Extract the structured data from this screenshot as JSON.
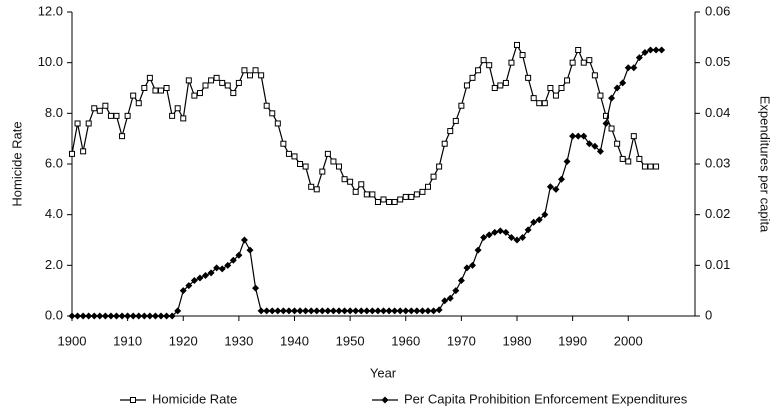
{
  "chart_data": {
    "type": "line",
    "xlabel": "Year",
    "ylabel": "Homicide Rate",
    "y2label": "Expenditures per capita",
    "x": [
      1900,
      1901,
      1902,
      1903,
      1904,
      1905,
      1906,
      1907,
      1908,
      1909,
      1910,
      1911,
      1912,
      1913,
      1914,
      1915,
      1916,
      1917,
      1918,
      1919,
      1920,
      1921,
      1922,
      1923,
      1924,
      1925,
      1926,
      1927,
      1928,
      1929,
      1930,
      1931,
      1932,
      1933,
      1934,
      1935,
      1936,
      1937,
      1938,
      1939,
      1940,
      1941,
      1942,
      1943,
      1944,
      1945,
      1946,
      1947,
      1948,
      1949,
      1950,
      1951,
      1952,
      1953,
      1954,
      1955,
      1956,
      1957,
      1958,
      1959,
      1960,
      1961,
      1962,
      1963,
      1964,
      1965,
      1966,
      1967,
      1968,
      1969,
      1970,
      1971,
      1972,
      1973,
      1974,
      1975,
      1976,
      1977,
      1978,
      1979,
      1980,
      1981,
      1982,
      1983,
      1984,
      1985,
      1986,
      1987,
      1988,
      1989,
      1990,
      1991,
      1992,
      1993,
      1994,
      1995,
      1996,
      1997,
      1998,
      1999,
      2000,
      2001,
      2002,
      2003,
      2004,
      2005,
      2006
    ],
    "series": [
      {
        "name": "Homicide Rate",
        "color": "#000000",
        "marker": "square",
        "values": [
          6.4,
          7.6,
          6.5,
          7.6,
          8.2,
          8.1,
          8.3,
          7.9,
          7.9,
          7.1,
          7.9,
          8.7,
          8.4,
          9.0,
          9.4,
          8.9,
          8.9,
          9.0,
          7.9,
          8.2,
          7.8,
          9.3,
          8.7,
          8.8,
          9.1,
          9.3,
          9.4,
          9.2,
          9.1,
          8.8,
          9.2,
          9.7,
          9.5,
          9.7,
          9.5,
          8.3,
          8.0,
          7.6,
          6.8,
          6.4,
          6.3,
          6.0,
          5.9,
          5.1,
          5.0,
          5.7,
          6.4,
          6.1,
          5.9,
          5.4,
          5.3,
          4.9,
          5.2,
          4.8,
          4.8,
          4.5,
          4.6,
          4.5,
          4.5,
          4.6,
          4.7,
          4.7,
          4.8,
          4.9,
          5.1,
          5.5,
          5.9,
          6.8,
          7.3,
          7.7,
          8.3,
          9.1,
          9.4,
          9.7,
          10.1,
          9.9,
          9.0,
          9.1,
          9.2,
          10.0,
          10.7,
          10.3,
          9.4,
          8.6,
          8.4,
          8.4,
          9.0,
          8.7,
          9.0,
          9.3,
          10.0,
          10.5,
          10.0,
          10.1,
          9.5,
          8.7,
          7.9,
          7.4,
          6.8,
          6.2,
          6.1,
          7.1,
          6.2,
          5.9,
          5.9,
          5.9,
          null
        ]
      },
      {
        "name": "Per Capita Prohibition Enforcement Expenditures",
        "color": "#000000",
        "marker": "diamond",
        "axis": "y2",
        "values": [
          0,
          0,
          0,
          0,
          0,
          0,
          0,
          0,
          0,
          0,
          0,
          0,
          0,
          0,
          0,
          0,
          0,
          0,
          0,
          0.001,
          0.005,
          0.006,
          0.007,
          0.0075,
          0.008,
          0.0085,
          0.0095,
          0.0093,
          0.01,
          0.011,
          0.012,
          0.015,
          0.013,
          0.0055,
          0.001,
          0.001,
          0.001,
          0.001,
          0.001,
          0.001,
          0.001,
          0.001,
          0.001,
          0.001,
          0.001,
          0.001,
          0.001,
          0.001,
          0.001,
          0.001,
          0.001,
          0.001,
          0.001,
          0.001,
          0.001,
          0.001,
          0.001,
          0.001,
          0.001,
          0.001,
          0.001,
          0.001,
          0.001,
          0.001,
          0.001,
          0.001,
          0.0012,
          0.003,
          0.0035,
          0.005,
          0.007,
          0.0095,
          0.01,
          0.013,
          0.0155,
          0.016,
          0.0165,
          0.0168,
          0.0165,
          0.0155,
          0.015,
          0.0155,
          0.017,
          0.0185,
          0.019,
          0.02,
          0.0255,
          0.025,
          0.027,
          0.0305,
          0.0355,
          0.0355,
          0.0355,
          0.034,
          0.0335,
          0.0325,
          0.038,
          0.043,
          0.045,
          0.046,
          0.049,
          0.049,
          0.051,
          0.052,
          0.0525,
          0.0525,
          0.0525
        ]
      }
    ],
    "xlim": [
      1900,
      2012
    ],
    "xticks": [
      1900,
      1910,
      1920,
      1930,
      1940,
      1950,
      1960,
      1970,
      1980,
      1990,
      2000
    ],
    "ylim": [
      0,
      12
    ],
    "yticks": [
      {
        "value": 0,
        "label": "0.0"
      },
      {
        "value": 2,
        "label": "2.0"
      },
      {
        "value": 4,
        "label": "4.0"
      },
      {
        "value": 6,
        "label": "6.0"
      },
      {
        "value": 8,
        "label": "8.0"
      },
      {
        "value": 10,
        "label": "10.0"
      },
      {
        "value": 12,
        "label": "12.0"
      }
    ],
    "y2lim": [
      0,
      0.06
    ],
    "y2ticks": [
      0,
      0.01,
      0.02,
      0.03,
      0.04,
      0.05,
      0.06
    ],
    "grid": false,
    "legend": "bottom"
  }
}
